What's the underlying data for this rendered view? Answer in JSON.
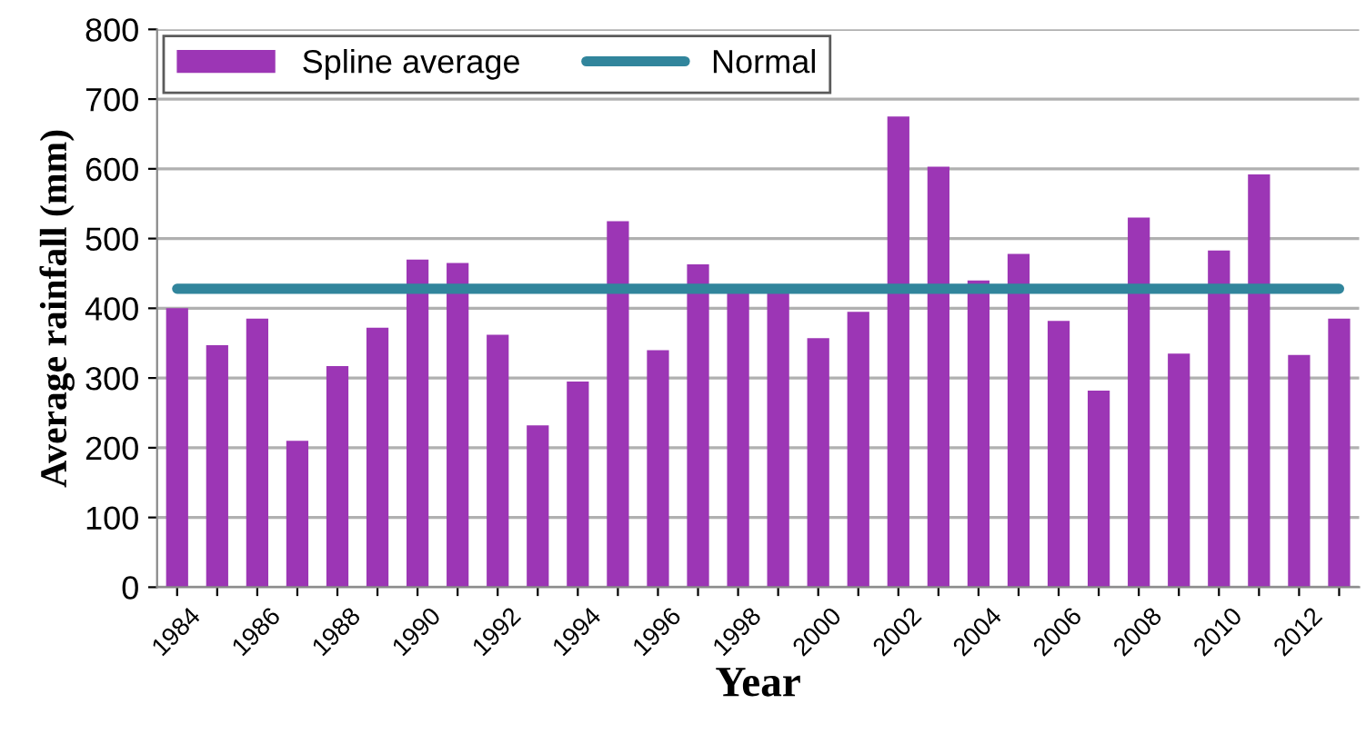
{
  "chart_data": {
    "type": "bar",
    "xlabel": "Year",
    "ylabel": "Average rainfall (mm)",
    "categories": [
      "1984",
      null,
      "1986",
      null,
      "1988",
      null,
      "1990",
      null,
      "1992",
      null,
      "1994",
      null,
      "1996",
      null,
      "1998",
      null,
      "2000",
      null,
      "2002",
      null,
      "2004",
      null,
      "2006",
      null,
      "2008",
      null,
      "2010",
      null,
      "2012",
      null
    ],
    "series": [
      {
        "name": "Spline average",
        "color": "#9c36b5",
        "values": [
          400,
          347,
          385,
          210,
          317,
          372,
          470,
          465,
          362,
          232,
          295,
          525,
          340,
          463,
          423,
          423,
          357,
          395,
          675,
          603,
          440,
          478,
          382,
          282,
          530,
          335,
          483,
          592,
          333,
          385
        ]
      },
      {
        "name": "Normal",
        "type": "line",
        "color": "#31859c",
        "values": [
          428,
          428,
          428,
          428,
          428,
          428,
          428,
          428,
          428,
          428,
          428,
          428,
          428,
          428,
          428,
          428,
          428,
          428,
          428,
          428,
          428,
          428,
          428,
          428,
          428,
          428,
          428,
          428,
          428,
          428
        ]
      }
    ],
    "ylim": [
      0,
      800
    ],
    "yticks": [
      0,
      100,
      200,
      300,
      400,
      500,
      600,
      700,
      800
    ],
    "grid": "y",
    "legend": "top left"
  }
}
